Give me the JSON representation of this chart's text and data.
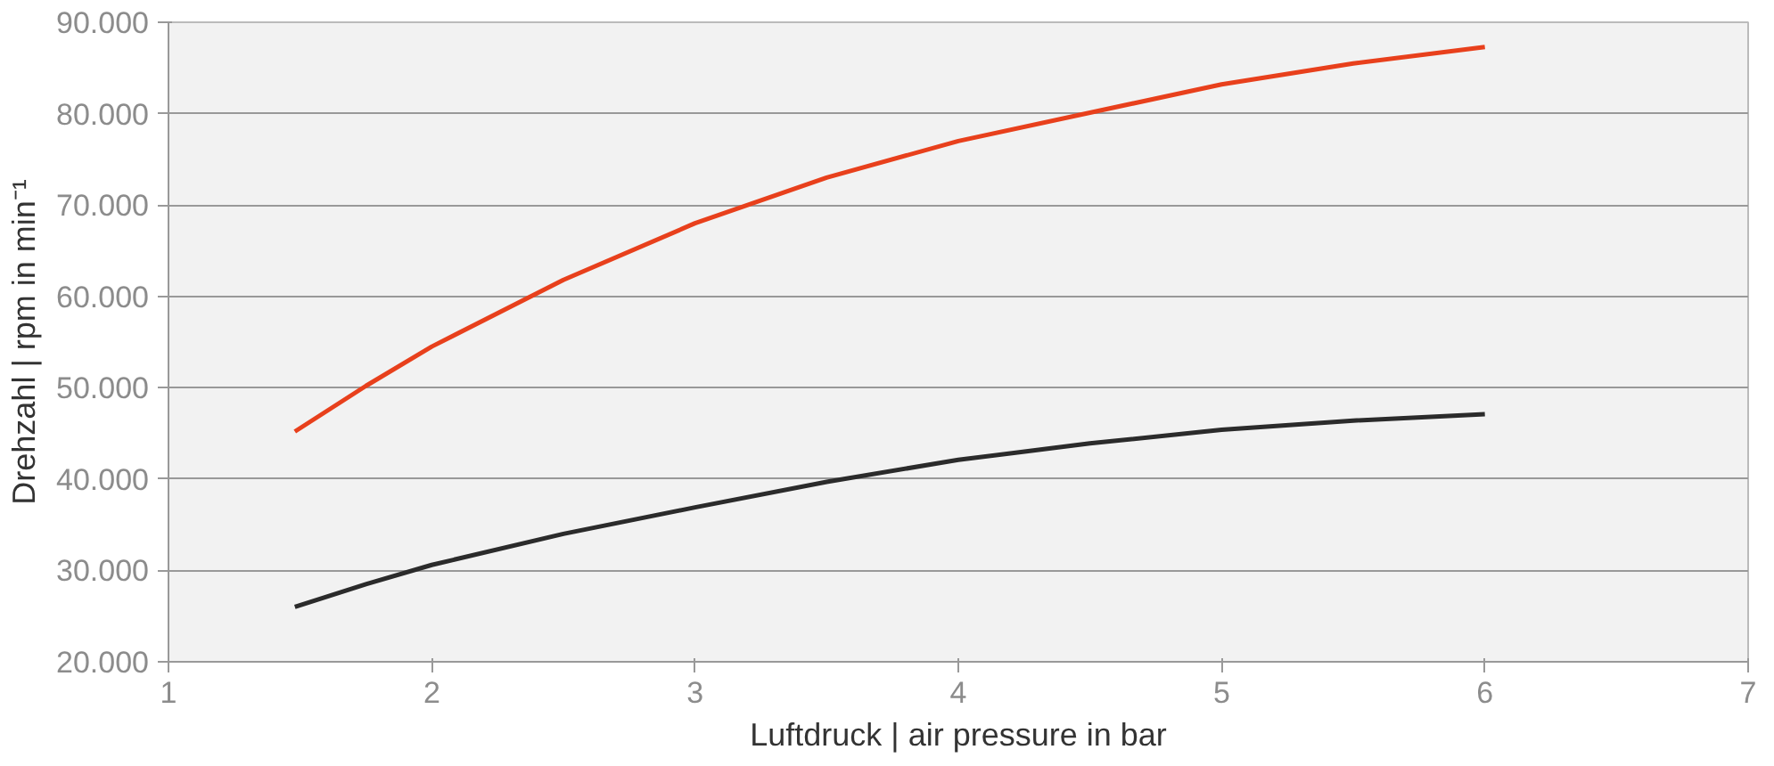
{
  "chart_data": {
    "type": "line",
    "xlabel": "Luftdruck | air pressure in bar",
    "ylabel": "Drehzahl | rpm in min⁻¹",
    "xlim": [
      1,
      7
    ],
    "xticks": [
      1,
      2,
      3,
      4,
      5,
      6,
      7
    ],
    "ylim": [
      20000,
      90000
    ],
    "yticks": [
      {
        "value": 20000,
        "label": "20.000"
      },
      {
        "value": 30000,
        "label": "30.000"
      },
      {
        "value": 40000,
        "label": "40.000"
      },
      {
        "value": 50000,
        "label": "50.000"
      },
      {
        "value": 60000,
        "label": "60.000"
      },
      {
        "value": 70000,
        "label": "70.000"
      },
      {
        "value": 80000,
        "label": "80.000"
      },
      {
        "value": 90000,
        "label": "90.000"
      }
    ],
    "grid": "y",
    "marker": "none",
    "line_style": "solid",
    "series": [
      {
        "color": "#e8401c",
        "x": [
          1.48,
          1.75,
          2,
          2.5,
          3,
          3.5,
          4,
          4.5,
          5,
          5.5,
          6
        ],
        "values": [
          45200,
          50200,
          54500,
          61800,
          68000,
          73000,
          77000,
          80100,
          83200,
          85500,
          87300
        ]
      },
      {
        "color": "#2b2b2b",
        "x": [
          1.48,
          1.75,
          2,
          2.5,
          3,
          3.5,
          4,
          4.5,
          5,
          5.5,
          6
        ],
        "values": [
          26000,
          28500,
          30600,
          34000,
          36900,
          39700,
          42100,
          43900,
          45400,
          46400,
          47100
        ]
      }
    ]
  }
}
